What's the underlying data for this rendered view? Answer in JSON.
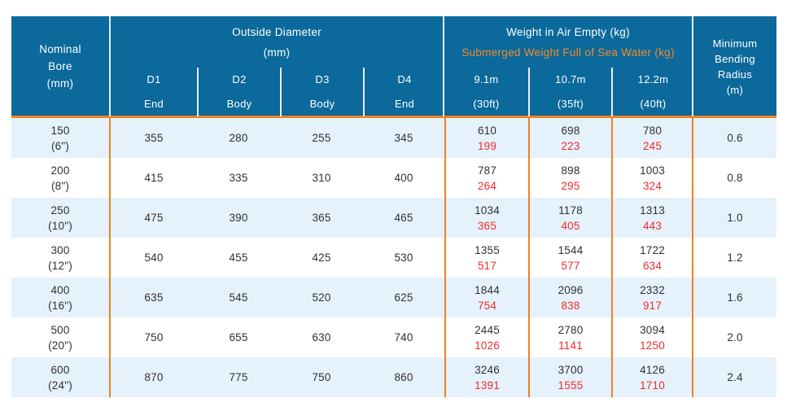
{
  "colors": {
    "header_bg": "#0B699B",
    "orange_line": "#EE8122",
    "orange_text": "#F28C28",
    "red_text": "#EE2C2F",
    "row_alt_bg": "#E5F2FB",
    "dark_text": "#303030",
    "white_text": "#FFFFFF"
  },
  "table": {
    "header": {
      "nominal_bore_lines": [
        "Nominal",
        "Bore",
        "(mm)"
      ],
      "outside_diameter": {
        "title": "Outside Diameter",
        "unit": "(mm)",
        "subcols": [
          {
            "id": "D1",
            "part": "End"
          },
          {
            "id": "D2",
            "part": "Body"
          },
          {
            "id": "D3",
            "part": "Body"
          },
          {
            "id": "D4",
            "part": "End"
          }
        ]
      },
      "weight": {
        "air_title": "Weight in Air Empty (kg)",
        "submerged_title": "Submerged Weight Full of Sea Water (kg)",
        "subcols": [
          {
            "length": "9.1m",
            "feet": "(30ft)"
          },
          {
            "length": "10.7m",
            "feet": "(35ft)"
          },
          {
            "length": "12.2m",
            "feet": "(40ft)"
          }
        ]
      },
      "bending_radius_lines": [
        "Minimum",
        "Bending",
        "Radius",
        "(m)"
      ]
    },
    "rows": [
      {
        "bore_mm": "150",
        "bore_in": "(6\")",
        "d1": "355",
        "d2": "280",
        "d3": "255",
        "d4": "345",
        "w30_air": "610",
        "w30_sub": "199",
        "w35_air": "698",
        "w35_sub": "223",
        "w40_air": "780",
        "w40_sub": "245",
        "radius": "0.6"
      },
      {
        "bore_mm": "200",
        "bore_in": "(8\")",
        "d1": "415",
        "d2": "335",
        "d3": "310",
        "d4": "400",
        "w30_air": "787",
        "w30_sub": "264",
        "w35_air": "898",
        "w35_sub": "295",
        "w40_air": "1003",
        "w40_sub": "324",
        "radius": "0.8"
      },
      {
        "bore_mm": "250",
        "bore_in": "(10\")",
        "d1": "475",
        "d2": "390",
        "d3": "365",
        "d4": "465",
        "w30_air": "1034",
        "w30_sub": "365",
        "w35_air": "1178",
        "w35_sub": "405",
        "w40_air": "1313",
        "w40_sub": "443",
        "radius": "1.0"
      },
      {
        "bore_mm": "300",
        "bore_in": "(12\")",
        "d1": "540",
        "d2": "455",
        "d3": "425",
        "d4": "530",
        "w30_air": "1355",
        "w30_sub": "517",
        "w35_air": "1544",
        "w35_sub": "577",
        "w40_air": "1722",
        "w40_sub": "634",
        "radius": "1.2"
      },
      {
        "bore_mm": "400",
        "bore_in": "(16\")",
        "d1": "635",
        "d2": "545",
        "d3": "520",
        "d4": "625",
        "w30_air": "1844",
        "w30_sub": "754",
        "w35_air": "2096",
        "w35_sub": "838",
        "w40_air": "2332",
        "w40_sub": "917",
        "radius": "1.6"
      },
      {
        "bore_mm": "500",
        "bore_in": "(20\")",
        "d1": "750",
        "d2": "655",
        "d3": "630",
        "d4": "740",
        "w30_air": "2445",
        "w30_sub": "1026",
        "w35_air": "2780",
        "w35_sub": "1141",
        "w40_air": "3094",
        "w40_sub": "1250",
        "radius": "2.0"
      },
      {
        "bore_mm": "600",
        "bore_in": "(24\")",
        "d1": "870",
        "d2": "775",
        "d3": "750",
        "d4": "860",
        "w30_air": "3246",
        "w30_sub": "1391",
        "w35_air": "3700",
        "w35_sub": "1555",
        "w40_air": "4126",
        "w40_sub": "1710",
        "radius": "2.4"
      }
    ]
  }
}
